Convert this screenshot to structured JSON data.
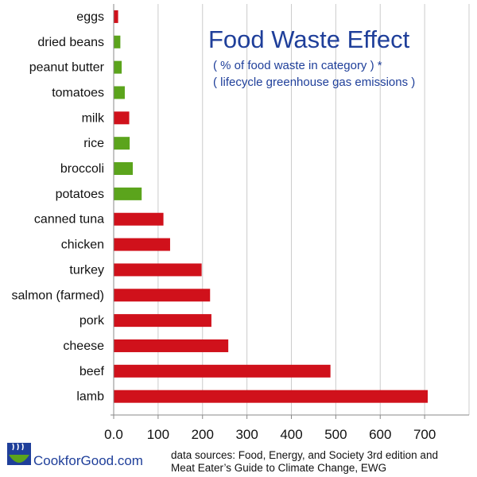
{
  "chart_data": {
    "type": "bar",
    "orientation": "horizontal",
    "title": "Food Waste Effect",
    "subtitle_lines": [
      "( % of food waste in category ) *",
      "( lifecycle greenhouse gas emissions )"
    ],
    "categories": [
      "eggs",
      "dried beans",
      "peanut butter",
      "tomatoes",
      "milk",
      "rice",
      "broccoli",
      "potatoes",
      "canned tuna",
      "chicken",
      "turkey",
      "salmon (farmed)",
      "pork",
      "cheese",
      "beef",
      "lamb"
    ],
    "values": [
      10,
      15,
      18,
      25,
      35,
      36,
      43,
      63,
      112,
      127,
      198,
      217,
      220,
      258,
      488,
      707
    ],
    "bar_colors": [
      "#d0111b",
      "#5ba41c",
      "#5ba41c",
      "#5ba41c",
      "#d0111b",
      "#5ba41c",
      "#5ba41c",
      "#5ba41c",
      "#d0111b",
      "#d0111b",
      "#d0111b",
      "#d0111b",
      "#d0111b",
      "#d0111b",
      "#d0111b",
      "#d0111b"
    ],
    "xlim": [
      0,
      800
    ],
    "xticks": [
      0,
      100,
      200,
      300,
      400,
      500,
      600,
      700
    ],
    "xtick_labels": [
      "0.0",
      "100",
      "200",
      "300",
      "400",
      "500",
      "600",
      "700"
    ],
    "grid": true,
    "xlabel": "",
    "ylabel": ""
  },
  "brand": {
    "logo_text": "CookforGood.com"
  },
  "source": {
    "line1": "data sources: Food, Energy, and Society 3rd edition and",
    "line2": "Meat Eater’s Guide to Climate Change, EWG"
  },
  "colors": {
    "title": "#1f3f9a",
    "meat": "#d0111b",
    "plant": "#5ba41c",
    "grid": "#cccccc"
  }
}
